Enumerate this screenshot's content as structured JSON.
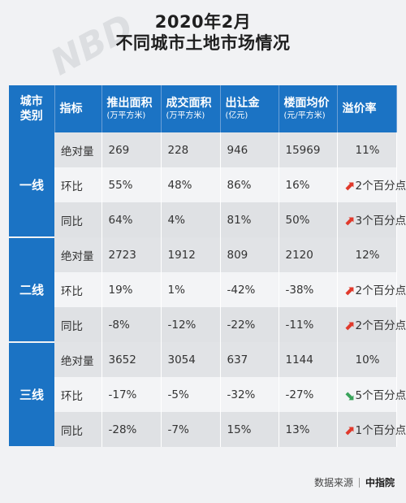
{
  "title": {
    "line1": "2020年2月",
    "line2": "不同城市土地市场情况"
  },
  "watermark": "NBD",
  "headers": {
    "type": {
      "line1": "城市",
      "line2": "类别"
    },
    "metric": "指标",
    "columns": [
      {
        "label": "推出面积",
        "unit": "(万平方米)"
      },
      {
        "label": "成交面积",
        "unit": "(万平方米)"
      },
      {
        "label": "出让金",
        "unit": "(亿元)"
      },
      {
        "label": "楼面均价",
        "unit": "(元/平方米)"
      },
      {
        "label": "溢价率",
        "unit": ""
      }
    ]
  },
  "groups": [
    {
      "name": "一线",
      "rows": [
        {
          "metric": "绝对量",
          "launch": "269",
          "deal": "228",
          "fee": "946",
          "price": "15969",
          "premium": "11%",
          "arrow": ""
        },
        {
          "metric": "环比",
          "launch": "55%",
          "deal": "48%",
          "fee": "86%",
          "price": "16%",
          "premium": "2个百分点",
          "arrow": "up"
        },
        {
          "metric": "同比",
          "launch": "64%",
          "deal": "4%",
          "fee": "81%",
          "price": "50%",
          "premium": "3个百分点",
          "arrow": "up"
        }
      ]
    },
    {
      "name": "二线",
      "rows": [
        {
          "metric": "绝对量",
          "launch": "2723",
          "deal": "1912",
          "fee": "809",
          "price": "2120",
          "premium": "12%",
          "arrow": ""
        },
        {
          "metric": "环比",
          "launch": "19%",
          "deal": "1%",
          "fee": "-42%",
          "price": "-38%",
          "premium": "2个百分点",
          "arrow": "up"
        },
        {
          "metric": "同比",
          "launch": "-8%",
          "deal": "-12%",
          "fee": "-22%",
          "price": "-11%",
          "premium": "2个百分点",
          "arrow": "up"
        }
      ]
    },
    {
      "name": "三线",
      "rows": [
        {
          "metric": "绝对量",
          "launch": "3652",
          "deal": "3054",
          "fee": "637",
          "price": "1144",
          "premium": "10%",
          "arrow": ""
        },
        {
          "metric": "环比",
          "launch": "-17%",
          "deal": "-5%",
          "fee": "-32%",
          "price": "-27%",
          "premium": "5个百分点",
          "arrow": "down"
        },
        {
          "metric": "同比",
          "launch": "-28%",
          "deal": "-7%",
          "fee": "15%",
          "price": "13%",
          "premium": "1个百分点",
          "arrow": "up"
        }
      ]
    }
  ],
  "colors": {
    "header": "#1b73c4",
    "arrow_up": "#e0392b",
    "arrow_down": "#3aa35b"
  },
  "footer": {
    "source_label": "数据来源",
    "source_name": "中指院"
  }
}
